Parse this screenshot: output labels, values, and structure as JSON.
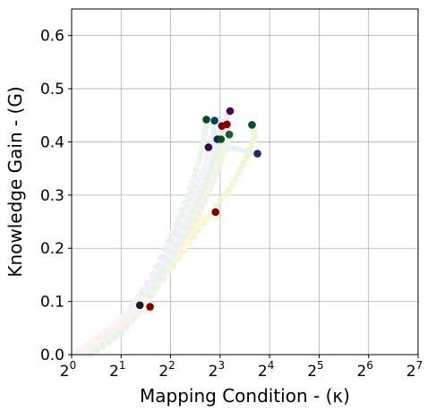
{
  "chart_data": {
    "type": "scatter",
    "title": "",
    "xlabel": "Mapping Condition - (κ)",
    "ylabel": "Knowledge Gain - (G)",
    "xscale": "log2",
    "xlim": [
      1,
      128
    ],
    "ylim": [
      0,
      0.65
    ],
    "x_ticks": [
      1,
      2,
      4,
      8,
      16,
      32,
      64,
      128
    ],
    "x_tick_labels": [
      "0",
      "1",
      "2",
      "3",
      "4",
      "5",
      "6",
      "7"
    ],
    "y_ticks": [
      0.0,
      0.1,
      0.2,
      0.3,
      0.4,
      0.5,
      0.6
    ],
    "y_tick_labels": [
      "0.0",
      "0.1",
      "0.2",
      "0.3",
      "0.4",
      "0.5",
      "0.6"
    ],
    "grid": true,
    "legend": "none",
    "trajectories": [
      {
        "color": "#e6f2fa",
        "end_color": "#1a2a6c",
        "points": [
          [
            1.05,
            0.0
          ],
          [
            1.4,
            0.02
          ],
          [
            2.0,
            0.06
          ],
          [
            2.8,
            0.12
          ],
          [
            3.8,
            0.2
          ],
          [
            5.0,
            0.28
          ],
          [
            6.2,
            0.34
          ],
          [
            7.5,
            0.37
          ],
          [
            9.0,
            0.39
          ],
          [
            13.5,
            0.378
          ]
        ]
      },
      {
        "color": "#ebf7d2",
        "end_color": "#0b4d2c",
        "points": [
          [
            1.1,
            0.0
          ],
          [
            1.6,
            0.03
          ],
          [
            2.4,
            0.08
          ],
          [
            3.6,
            0.14
          ],
          [
            5.2,
            0.21
          ],
          [
            7.2,
            0.27
          ],
          [
            9.5,
            0.32
          ],
          [
            11.5,
            0.37
          ],
          [
            13.0,
            0.41
          ],
          [
            12.5,
            0.432
          ]
        ]
      },
      {
        "color": "#e9f5e9",
        "end_color": "#004d20",
        "points": [
          [
            1.05,
            0.0
          ],
          [
            1.5,
            0.03
          ],
          [
            2.2,
            0.08
          ],
          [
            3.1,
            0.15
          ],
          [
            4.1,
            0.23
          ],
          [
            5.1,
            0.3
          ],
          [
            5.9,
            0.36
          ],
          [
            6.4,
            0.41
          ],
          [
            6.6,
            0.442
          ]
        ]
      },
      {
        "color": "#fdf3cc",
        "end_color": "#7f0000",
        "points": [
          [
            1.2,
            0.0
          ],
          [
            1.8,
            0.04
          ],
          [
            2.7,
            0.1
          ],
          [
            3.8,
            0.17
          ],
          [
            5.0,
            0.24
          ],
          [
            6.1,
            0.3
          ],
          [
            7.0,
            0.35
          ],
          [
            7.7,
            0.39
          ],
          [
            8.2,
            0.43
          ]
        ]
      },
      {
        "color": "#f3e6f3",
        "end_color": "#4d004d",
        "points": [
          [
            1.15,
            0.0
          ],
          [
            1.7,
            0.04
          ],
          [
            2.5,
            0.1
          ],
          [
            3.6,
            0.18
          ],
          [
            4.9,
            0.26
          ],
          [
            6.3,
            0.33
          ],
          [
            7.6,
            0.39
          ],
          [
            8.6,
            0.44
          ],
          [
            9.2,
            0.458
          ]
        ]
      },
      {
        "color": "#fce6e6",
        "end_color": "#7f0000",
        "points": [
          [
            1.3,
            0.0
          ],
          [
            2.0,
            0.04
          ],
          [
            2.9,
            0.1
          ],
          [
            4.1,
            0.17
          ],
          [
            5.4,
            0.24
          ],
          [
            6.7,
            0.3
          ],
          [
            7.8,
            0.35
          ],
          [
            8.5,
            0.4
          ],
          [
            8.8,
            0.433
          ]
        ]
      },
      {
        "color": "#e0f2f7",
        "end_color": "#0b3d5c",
        "points": [
          [
            1.1,
            0.0
          ],
          [
            1.6,
            0.03
          ],
          [
            2.4,
            0.08
          ],
          [
            3.4,
            0.15
          ],
          [
            4.6,
            0.22
          ],
          [
            5.7,
            0.29
          ],
          [
            6.7,
            0.35
          ],
          [
            7.3,
            0.4
          ],
          [
            7.4,
            0.44
          ]
        ]
      },
      {
        "color": "#f0f5e0",
        "end_color": "#1e5a32",
        "points": [
          [
            1.2,
            0.0
          ],
          [
            1.9,
            0.04
          ],
          [
            2.8,
            0.1
          ],
          [
            4.0,
            0.17
          ],
          [
            5.4,
            0.25
          ],
          [
            6.8,
            0.31
          ],
          [
            8.0,
            0.36
          ],
          [
            8.8,
            0.4
          ],
          [
            9.1,
            0.414
          ]
        ]
      },
      {
        "color": "#f7f0fa",
        "end_color": "#3d004d",
        "points": [
          [
            1.05,
            0.0
          ],
          [
            1.4,
            0.02
          ],
          [
            2.0,
            0.06
          ],
          [
            2.8,
            0.12
          ],
          [
            3.8,
            0.19
          ],
          [
            5.0,
            0.26
          ],
          [
            6.0,
            0.32
          ],
          [
            6.6,
            0.36
          ],
          [
            6.8,
            0.39
          ]
        ]
      },
      {
        "color": "#fff5d6",
        "end_color": "#800000",
        "points": [
          [
            1.1,
            0.0
          ],
          [
            1.7,
            0.03
          ],
          [
            2.5,
            0.08
          ],
          [
            3.5,
            0.14
          ],
          [
            4.8,
            0.2
          ],
          [
            6.0,
            0.25
          ],
          [
            7.5,
            0.268
          ]
        ]
      },
      {
        "color": "#eef5fb",
        "end_color": "#0a2a5a",
        "points": [
          [
            1.2,
            0.0
          ],
          [
            1.8,
            0.03
          ],
          [
            2.6,
            0.08
          ],
          [
            3.6,
            0.15
          ],
          [
            4.8,
            0.23
          ],
          [
            6.0,
            0.3
          ],
          [
            7.0,
            0.36
          ],
          [
            7.7,
            0.405
          ]
        ]
      },
      {
        "color": "#e5f3e5",
        "end_color": "#0b4d1c",
        "points": [
          [
            1.3,
            0.0
          ],
          [
            2.0,
            0.04
          ],
          [
            3.0,
            0.11
          ],
          [
            4.2,
            0.19
          ],
          [
            5.5,
            0.27
          ],
          [
            6.7,
            0.33
          ],
          [
            7.6,
            0.38
          ],
          [
            8.1,
            0.405
          ]
        ]
      },
      {
        "color": "#f7f4f9",
        "end_color": "#1a1a1a",
        "points": [
          [
            1.02,
            0.0
          ],
          [
            1.3,
            0.02
          ],
          [
            1.7,
            0.05
          ],
          [
            2.2,
            0.08
          ],
          [
            2.6,
            0.093
          ]
        ]
      },
      {
        "color": "#fdf0f0",
        "end_color": "#800000",
        "points": [
          [
            1.05,
            0.0
          ],
          [
            1.4,
            0.03
          ],
          [
            2.0,
            0.06
          ],
          [
            2.6,
            0.085
          ],
          [
            3.0,
            0.09
          ]
        ]
      }
    ]
  }
}
